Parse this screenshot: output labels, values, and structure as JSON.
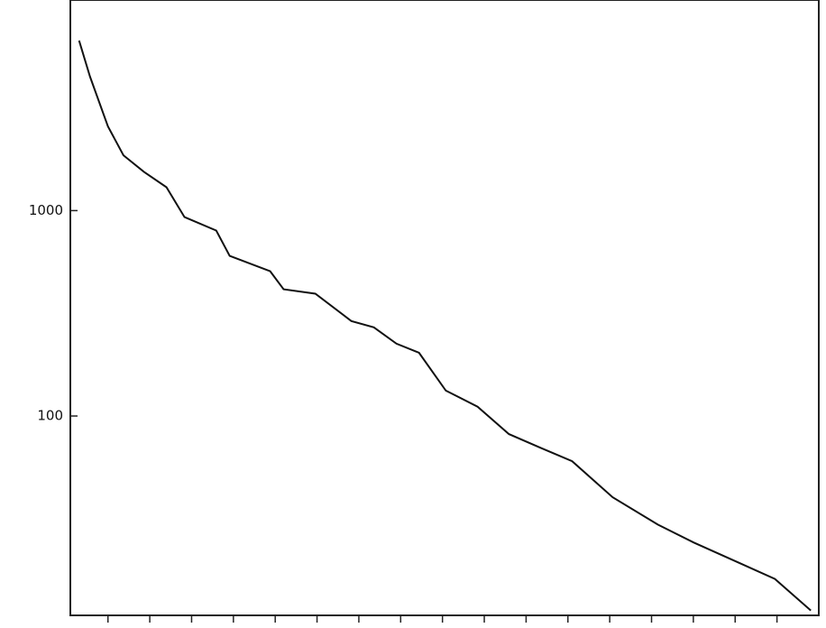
{
  "chart_data": {
    "type": "line",
    "log_y": true,
    "x": [
      0.31,
      0.57,
      1.0,
      1.37,
      1.86,
      2.4,
      2.83,
      3.59,
      3.91,
      4.88,
      5.2,
      5.96,
      6.82,
      7.36,
      7.9,
      8.44,
      9.08,
      9.84,
      10.59,
      11.34,
      12.1,
      13.07,
      14.15,
      15.01,
      16.09,
      16.95,
      17.81
    ],
    "values": [
      6730,
      4490,
      2570,
      1860,
      1545,
      1300,
      930,
      800,
      602,
      507,
      414,
      394,
      290,
      270,
      225,
      203,
      133,
      111,
      81.6,
      70.1,
      60.3,
      40.2,
      29.6,
      24.2,
      19.3,
      16.1,
      11.3
    ],
    "color": "#111111",
    "xlim": [
      0.1,
      18
    ],
    "xticks": [
      1,
      2,
      3,
      4,
      5,
      6,
      7,
      8,
      9,
      10,
      11,
      12,
      13,
      14,
      15,
      16,
      17
    ],
    "ylim": [
      10.7,
      10600
    ],
    "yticks": [
      100,
      1000
    ]
  }
}
